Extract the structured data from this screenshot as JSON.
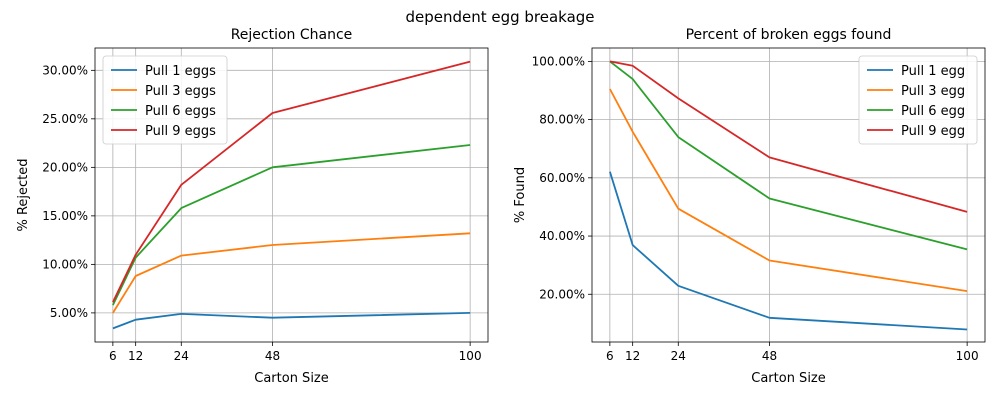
{
  "suptitle": "dependent egg breakage",
  "chart_data": [
    {
      "type": "line",
      "title": "Rejection Chance",
      "xlabel": "Carton Size",
      "ylabel": "% Rejected",
      "x": [
        6,
        12,
        24,
        48,
        100
      ],
      "xticks": [
        "6",
        "12",
        "24",
        "48",
        "100"
      ],
      "yticks": [
        {
          "value": 5,
          "label": "5.00%"
        },
        {
          "value": 10,
          "label": "10.00%"
        },
        {
          "value": 15,
          "label": "15.00%"
        },
        {
          "value": 20,
          "label": "20.00%"
        },
        {
          "value": 25,
          "label": "25.00%"
        },
        {
          "value": 30,
          "label": "30.00%"
        }
      ],
      "xlim": [
        1.3,
        104.7
      ],
      "ylim": [
        2.0,
        32.3
      ],
      "grid": true,
      "legend_position": "upper left",
      "series": [
        {
          "name": "Pull 1 eggs",
          "color": "#1f77b4",
          "values": [
            3.4,
            4.3,
            4.9,
            4.5,
            5.0
          ]
        },
        {
          "name": "Pull 3 eggs",
          "color": "#ff7f0e",
          "values": [
            5.0,
            8.8,
            10.9,
            12.0,
            13.2
          ]
        },
        {
          "name": "Pull 6 eggs",
          "color": "#2ca02c",
          "values": [
            5.8,
            10.7,
            15.8,
            20.0,
            22.3
          ]
        },
        {
          "name": "Pull 9 eggs",
          "color": "#d62728",
          "values": [
            6.1,
            11.0,
            18.2,
            25.6,
            30.9
          ]
        }
      ]
    },
    {
      "type": "line",
      "title": "Percent of broken eggs found",
      "xlabel": "Carton Size",
      "ylabel": "% Found",
      "x": [
        6,
        12,
        24,
        48,
        100
      ],
      "xticks": [
        "6",
        "12",
        "24",
        "48",
        "100"
      ],
      "yticks": [
        {
          "value": 20,
          "label": "20.00%"
        },
        {
          "value": 40,
          "label": "40.00%"
        },
        {
          "value": 60,
          "label": "60.00%"
        },
        {
          "value": 80,
          "label": "80.00%"
        },
        {
          "value": 100,
          "label": "100.00%"
        }
      ],
      "xlim": [
        1.3,
        104.7
      ],
      "ylim": [
        3.6,
        104.6
      ],
      "grid": true,
      "legend_position": "upper right",
      "series": [
        {
          "name": "Pull 1 egg",
          "color": "#1f77b4",
          "values": [
            62.1,
            36.9,
            22.9,
            11.9,
            7.9
          ]
        },
        {
          "name": "Pull 3 egg",
          "color": "#ff7f0e",
          "values": [
            90.5,
            75.8,
            49.4,
            31.6,
            21.1
          ]
        },
        {
          "name": "Pull 6 egg",
          "color": "#2ca02c",
          "values": [
            100.0,
            93.9,
            74.0,
            52.9,
            35.4
          ]
        },
        {
          "name": "Pull 9 egg",
          "color": "#d62728",
          "values": [
            100.0,
            98.5,
            87.3,
            67.0,
            48.3
          ]
        }
      ]
    }
  ]
}
